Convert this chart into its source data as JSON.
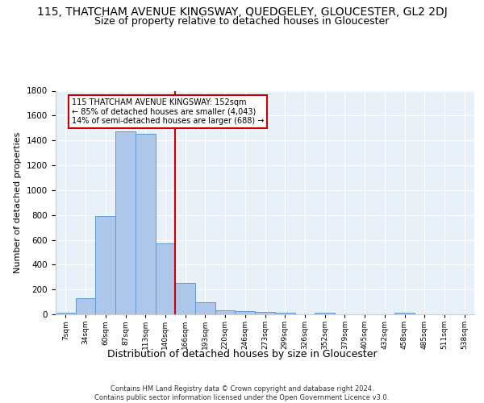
{
  "title_line1": "115, THATCHAM AVENUE KINGSWAY, QUEDGELEY, GLOUCESTER, GL2 2DJ",
  "title_line2": "Size of property relative to detached houses in Gloucester",
  "xlabel": "Distribution of detached houses by size in Gloucester",
  "ylabel": "Number of detached properties",
  "bins": [
    "7sqm",
    "34sqm",
    "60sqm",
    "87sqm",
    "113sqm",
    "140sqm",
    "166sqm",
    "193sqm",
    "220sqm",
    "246sqm",
    "273sqm",
    "299sqm",
    "326sqm",
    "352sqm",
    "379sqm",
    "405sqm",
    "432sqm",
    "458sqm",
    "485sqm",
    "511sqm",
    "538sqm"
  ],
  "values": [
    10,
    130,
    790,
    1470,
    1450,
    570,
    250,
    100,
    35,
    25,
    20,
    15,
    0,
    15,
    0,
    0,
    0,
    15,
    0,
    0,
    0
  ],
  "bar_color": "#aec6e8",
  "bar_edge_color": "#5b9bd5",
  "vline_x_idx": 5,
  "vline_color": "#cc0000",
  "annotation_text": "115 THATCHAM AVENUE KINGSWAY: 152sqm\n← 85% of detached houses are smaller (4,043)\n14% of semi-detached houses are larger (688) →",
  "annotation_box_color": "#ffffff",
  "annotation_box_edge": "#cc0000",
  "ylim": [
    0,
    1800
  ],
  "yticks": [
    0,
    200,
    400,
    600,
    800,
    1000,
    1200,
    1400,
    1600,
    1800
  ],
  "bg_color": "#e8f0f8",
  "footer": "Contains HM Land Registry data © Crown copyright and database right 2024.\nContains public sector information licensed under the Open Government Licence v3.0.",
  "title_fontsize": 10,
  "subtitle_fontsize": 9,
  "xlabel_fontsize": 9,
  "ylabel_fontsize": 8
}
